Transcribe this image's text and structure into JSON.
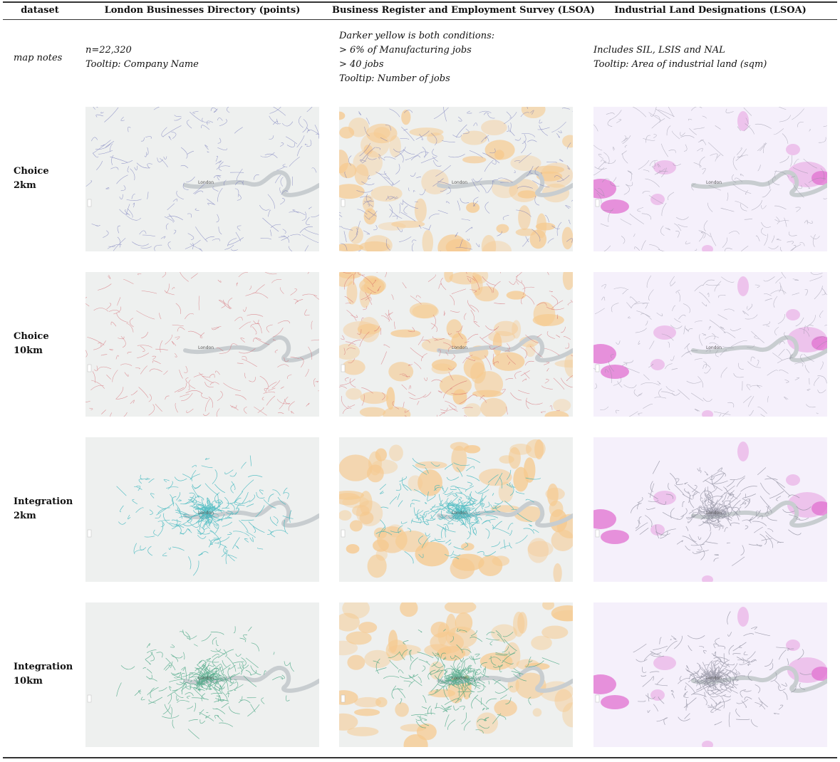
{
  "header": {
    "dataset": "dataset",
    "col1": "London Businesses Directory (points)",
    "col2": "Business Register and Employment Survey (LSOA)",
    "col3": "Industrial Land Designations (LSOA)"
  },
  "notes": {
    "label": "map notes",
    "col1": [
      "n=22,320",
      "Tooltip: Company Name"
    ],
    "col2": [
      "Darker yellow is both conditions:",
      "> 6% of Manufacturing jobs",
      "> 40 jobs",
      "Tooltip: Number of jobs"
    ],
    "col3": [
      "Includes SIL, LSIS and NAL",
      "Tooltip: Area of industrial land (sqm)"
    ]
  },
  "rows": [
    {
      "line1": "Choice",
      "line2": "2km"
    },
    {
      "line1": "Choice",
      "line2": "10km"
    },
    {
      "line1": "Integration",
      "line2": "2km"
    },
    {
      "line1": "Integration",
      "line2": "10km"
    }
  ],
  "map_text": {
    "city": "London"
  },
  "colors": {
    "choice2": "#5a5fb0",
    "choice10": "#d0505a",
    "integ2": "#2ab0b8",
    "integ10": "#3aa07a",
    "jobs_fill": "#f6c98e",
    "industrial_fill": "#e070d0",
    "industrial_bg": "#f5f0fb",
    "map_bg": "#eef0ef",
    "river": "#c8cdd0"
  }
}
